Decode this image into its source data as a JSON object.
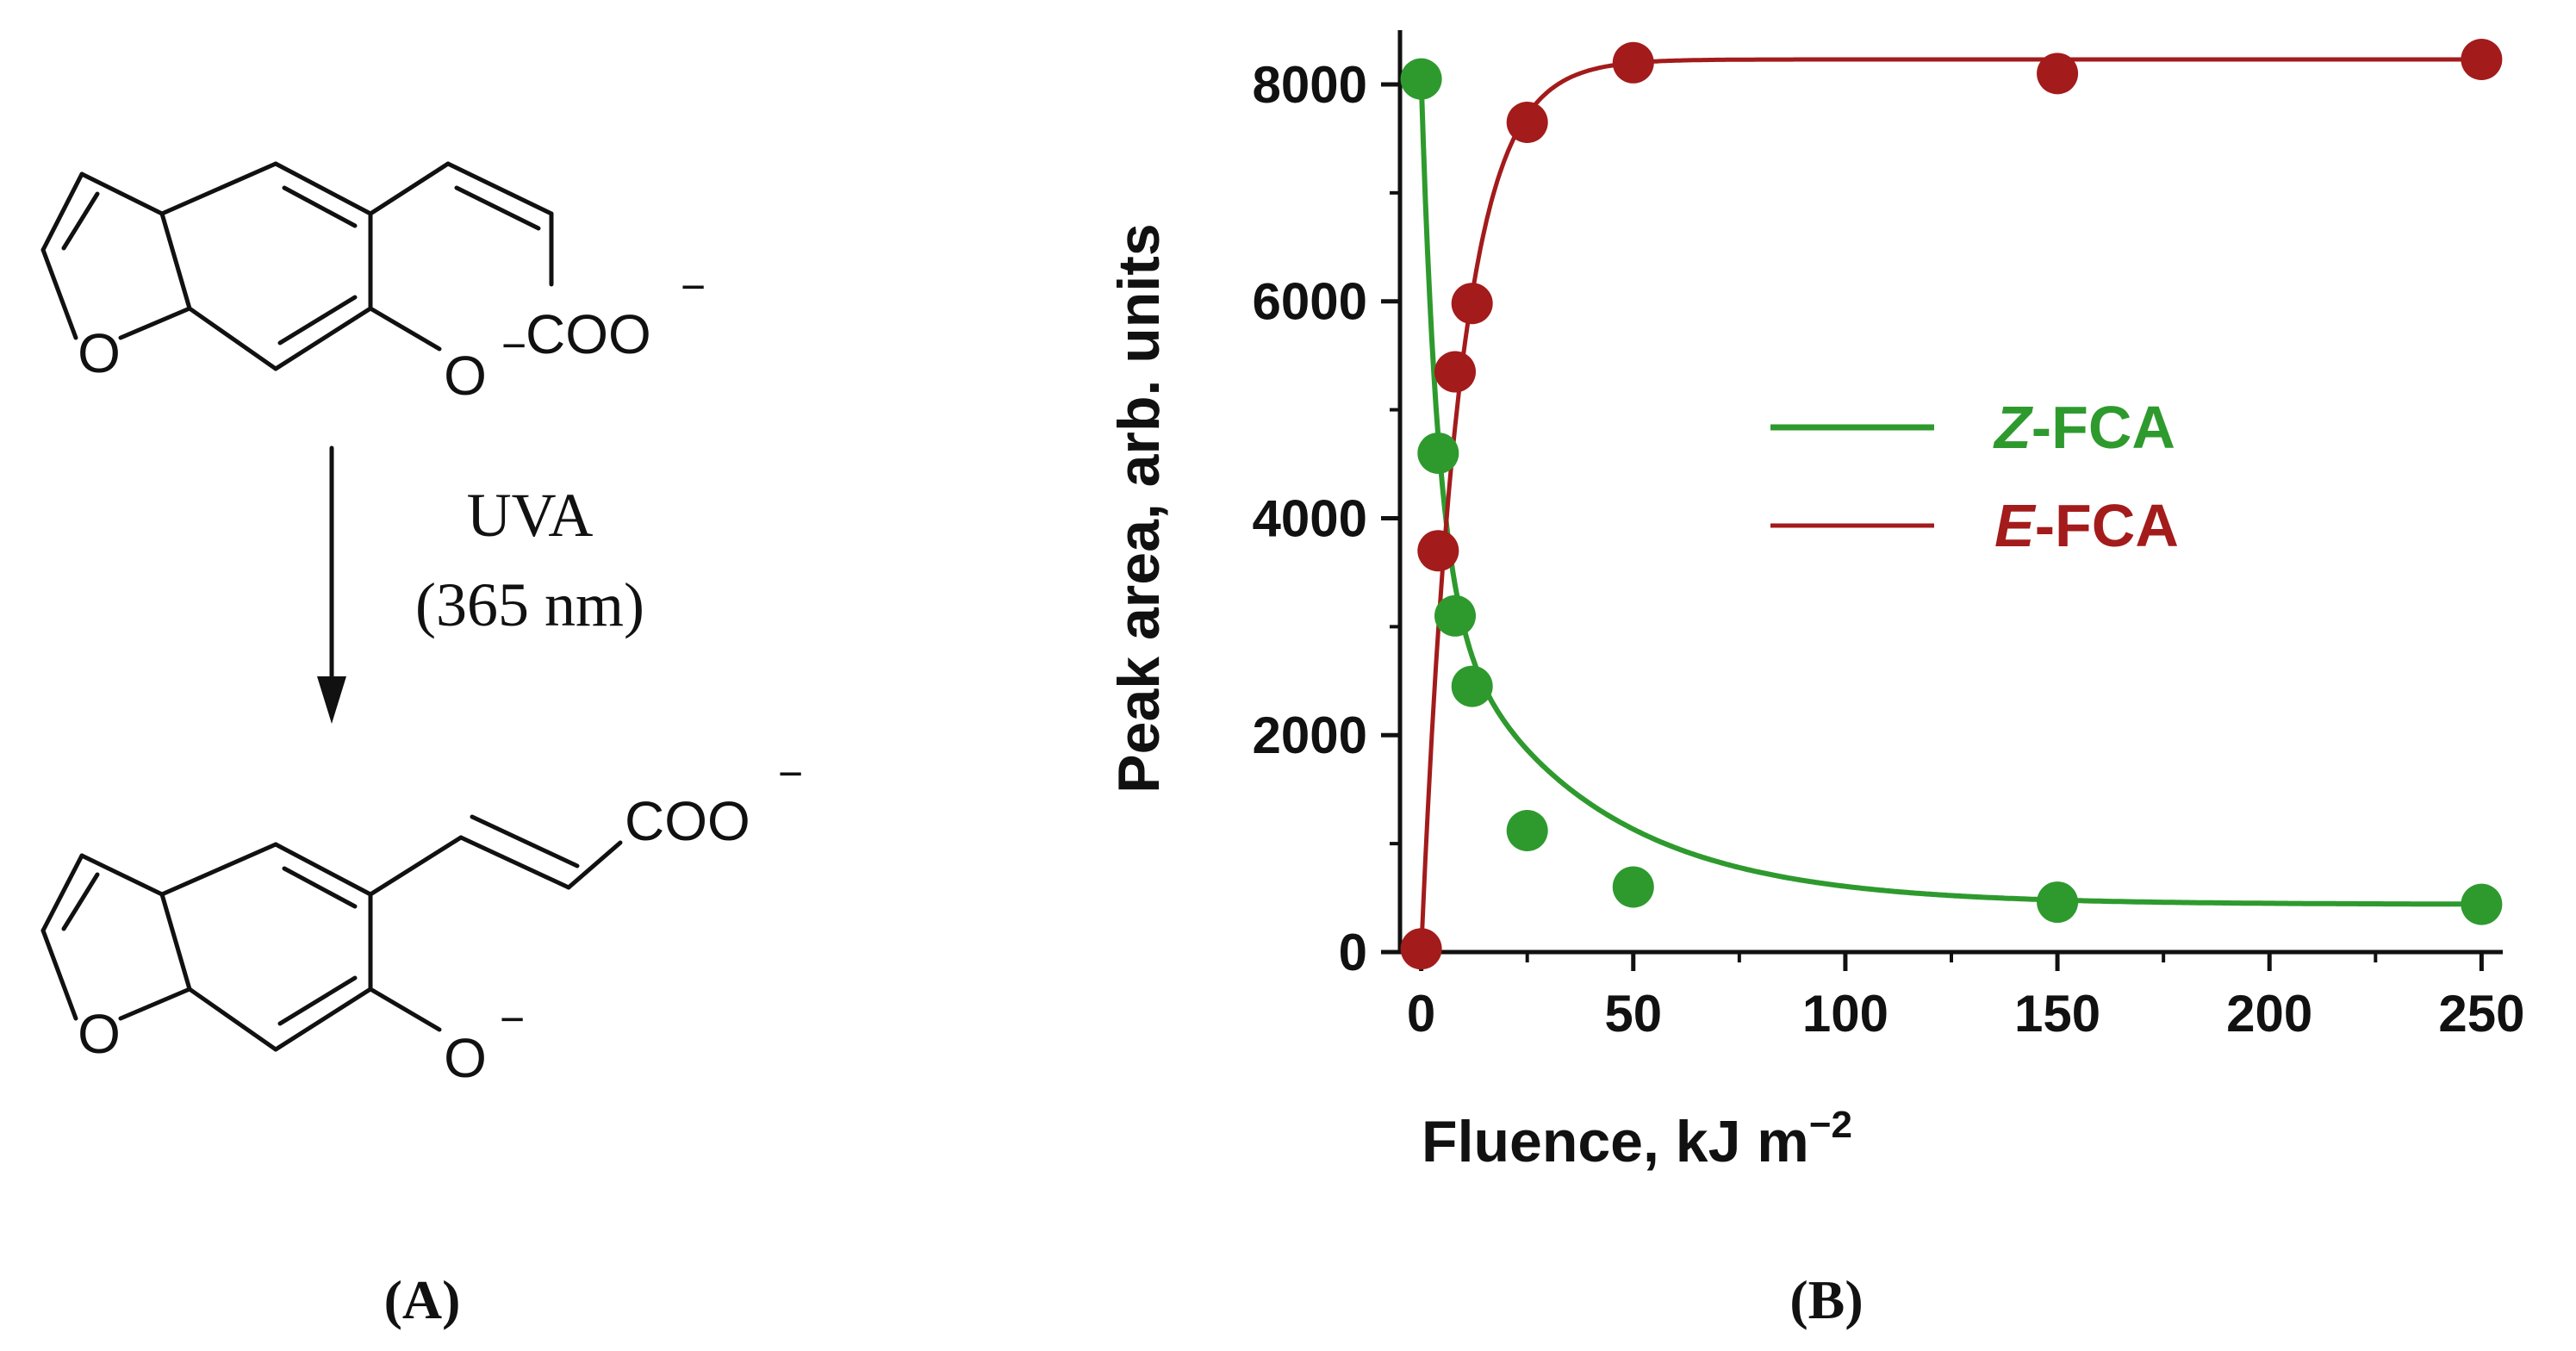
{
  "scheme": {
    "reactant_carboxylate": "COO",
    "reactant_phenolate": "O",
    "reactant_ring_oxygen": "O",
    "condition_line1": "UVA",
    "condition_line2": "(365 nm)",
    "product_carboxylate": "COO",
    "product_phenolate": "O",
    "product_ring_oxygen": "O",
    "charge": "−"
  },
  "panel_labels": {
    "a": "(A)",
    "b": "(B)"
  },
  "colors": {
    "z": "#2e9a2e",
    "e": "#a31b1b",
    "ink": "#111111"
  },
  "chart_data": {
    "type": "scatter",
    "xlabel": "Fluence, kJ m",
    "xlabel_exp": "−2",
    "ylabel": "Peak area, arb. units",
    "xlim": [
      -5,
      255
    ],
    "ylim": [
      0,
      8500
    ],
    "xticks": [
      0,
      50,
      100,
      150,
      200,
      250
    ],
    "yticks": [
      0,
      2000,
      4000,
      6000,
      8000
    ],
    "legend": {
      "z_prefix": "Z",
      "e_prefix": "E",
      "suffix": "-FCA",
      "position": "center-right"
    },
    "series": [
      {
        "name": "Z-FCA",
        "x": [
          0,
          4,
          8,
          12,
          25,
          50,
          150,
          250
        ],
        "y": [
          8050,
          4600,
          3100,
          2450,
          1120,
          600,
          460,
          440
        ]
      },
      {
        "name": "E-FCA",
        "x": [
          0,
          4,
          8,
          12,
          25,
          50,
          150,
          250
        ],
        "y": [
          30,
          3700,
          5350,
          5980,
          7650,
          8200,
          8100,
          8230
        ]
      }
    ]
  }
}
